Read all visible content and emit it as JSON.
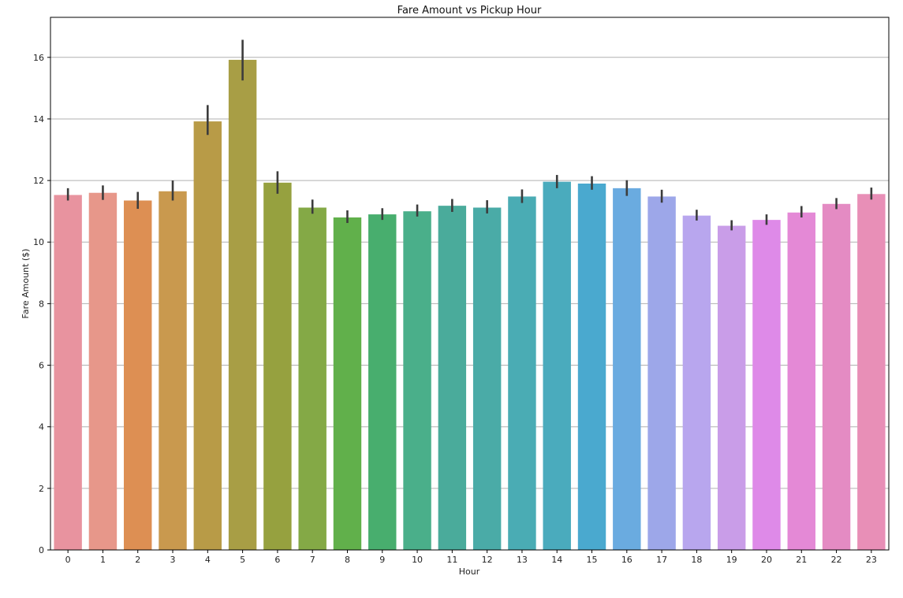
{
  "chart_data": {
    "type": "bar",
    "title": "Fare Amount vs Pickup Hour",
    "xlabel": "Hour",
    "ylabel": "Fare Amount ($)",
    "categories": [
      "0",
      "1",
      "2",
      "3",
      "4",
      "5",
      "6",
      "7",
      "8",
      "9",
      "10",
      "11",
      "12",
      "13",
      "14",
      "15",
      "16",
      "17",
      "18",
      "19",
      "20",
      "21",
      "22",
      "23"
    ],
    "values": [
      11.53,
      11.6,
      11.35,
      11.65,
      13.92,
      15.92,
      11.93,
      11.12,
      10.8,
      10.9,
      11.0,
      11.18,
      11.12,
      11.48,
      11.96,
      11.9,
      11.75,
      11.48,
      10.86,
      10.53,
      10.72,
      10.96,
      11.24,
      11.56
    ],
    "error_low": [
      11.35,
      11.37,
      11.08,
      11.35,
      13.48,
      15.25,
      11.57,
      10.92,
      10.62,
      10.72,
      10.83,
      10.98,
      10.93,
      11.27,
      11.75,
      11.7,
      11.5,
      11.28,
      10.7,
      10.38,
      10.56,
      10.8,
      11.07,
      11.38
    ],
    "error_high": [
      11.75,
      11.84,
      11.63,
      12.0,
      14.45,
      16.57,
      12.3,
      11.38,
      11.03,
      11.1,
      11.22,
      11.4,
      11.36,
      11.71,
      12.18,
      12.14,
      12.01,
      11.7,
      11.05,
      10.71,
      10.9,
      11.17,
      11.43,
      11.77
    ],
    "colors": [
      "#e8939f",
      "#e7978a",
      "#dd8f53",
      "#c9994e",
      "#b89b47",
      "#a89e45",
      "#96a13f",
      "#84a946",
      "#61b04b",
      "#48ae6e",
      "#4aaf8a",
      "#4aab9b",
      "#4aaba7",
      "#4aacb4",
      "#4aabbd",
      "#4aa9cf",
      "#6aabe0",
      "#9da7e9",
      "#b8a6ee",
      "#c99de8",
      "#de8ae8",
      "#e489d6",
      "#e48bc3",
      "#e88fb7"
    ],
    "ylim": [
      0,
      17.3
    ],
    "yticks": [
      0,
      2,
      4,
      6,
      8,
      10,
      12,
      14,
      16
    ],
    "grid": "y"
  }
}
